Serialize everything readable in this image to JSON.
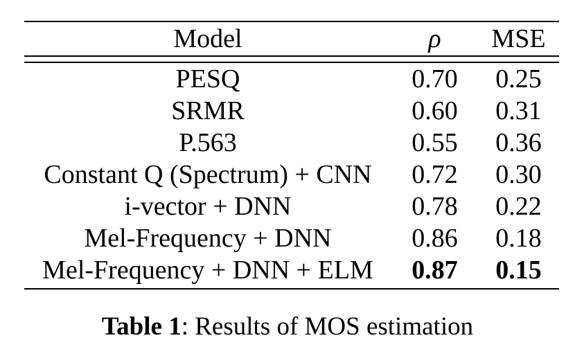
{
  "page": {
    "background": "#ffffff",
    "text_color": "#000000",
    "rule_color": "#000000"
  },
  "table": {
    "columns": [
      {
        "key": "model",
        "label": "Model"
      },
      {
        "key": "rho",
        "label": "ρ"
      },
      {
        "key": "mse",
        "label": "MSE"
      }
    ],
    "rows": [
      {
        "model": "PESQ",
        "rho": "0.70",
        "mse": "0.25",
        "bold": false
      },
      {
        "model": "SRMR",
        "rho": "0.60",
        "mse": "0.31",
        "bold": false
      },
      {
        "model": "P.563",
        "rho": "0.55",
        "mse": "0.36",
        "bold": false
      },
      {
        "model": "Constant Q (Spectrum) + CNN",
        "rho": "0.72",
        "mse": "0.30",
        "bold": false
      },
      {
        "model": "i-vector + DNN",
        "rho": "0.78",
        "mse": "0.22",
        "bold": false
      },
      {
        "model": "Mel-Frequency + DNN",
        "rho": "0.86",
        "mse": "0.18",
        "bold": false
      },
      {
        "model": "Mel-Frequency + DNN + ELM",
        "rho": "0.87",
        "mse": "0.15",
        "bold": true
      }
    ]
  },
  "caption": {
    "label": "Table 1",
    "separator": ": ",
    "text": "Results of MOS estimation"
  }
}
